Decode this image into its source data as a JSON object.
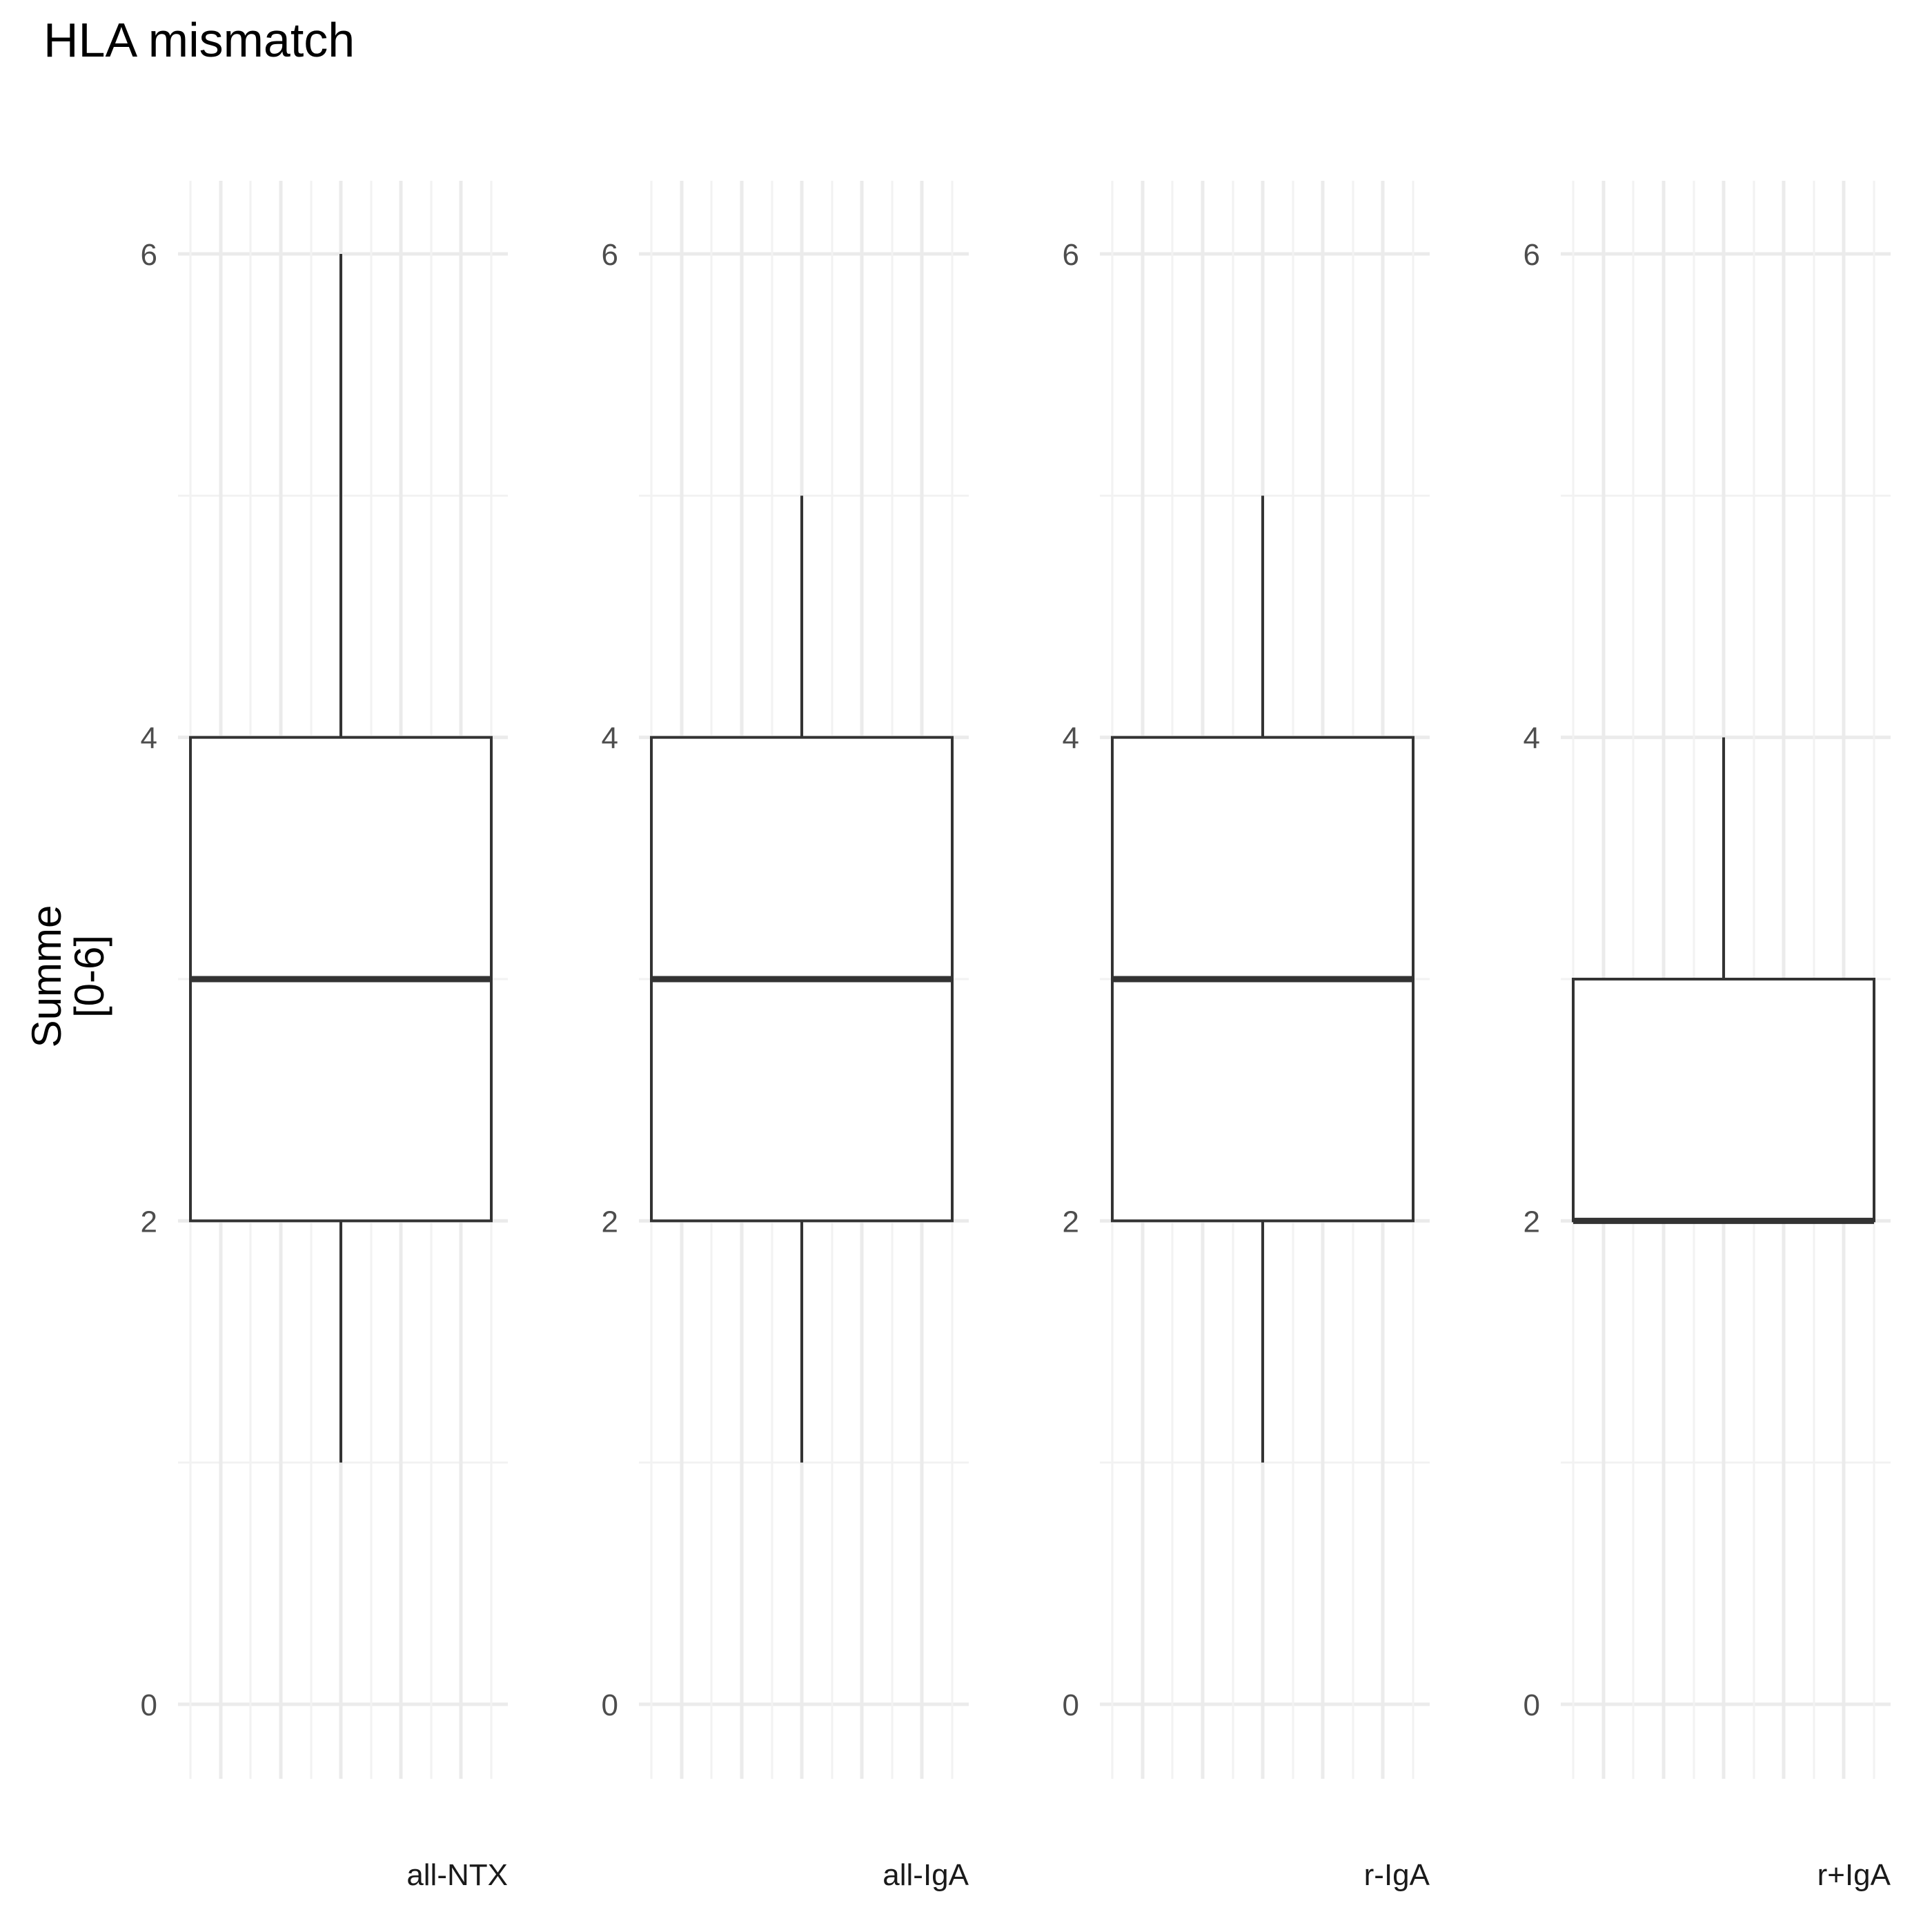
{
  "chart_data": {
    "type": "boxplot",
    "title": "HLA mismatch",
    "ylabel_lines": [
      "Summe",
      "[0-6]"
    ],
    "xlabel": "",
    "ylim": [
      -0.3,
      6.3
    ],
    "yticks": [
      0,
      2,
      4,
      6
    ],
    "grid": true,
    "panels": [
      {
        "category": "all-NTX",
        "whisker_low": 1,
        "q1": 2,
        "median": 3,
        "q3": 4,
        "whisker_high": 6
      },
      {
        "category": "all-IgA",
        "whisker_low": 1,
        "q1": 2,
        "median": 3,
        "q3": 4,
        "whisker_high": 5
      },
      {
        "category": "r-IgA",
        "whisker_low": 1,
        "q1": 2,
        "median": 3,
        "q3": 4,
        "whisker_high": 5
      },
      {
        "category": "r+IgA",
        "whisker_low": 2,
        "q1": 2,
        "median": 2,
        "q3": 3,
        "whisker_high": 4
      }
    ],
    "colors": {
      "box_line": "#333333",
      "box_fill": "#ffffff",
      "grid_major": "#ebebeb",
      "grid_minor": "#f2f2f2"
    }
  }
}
